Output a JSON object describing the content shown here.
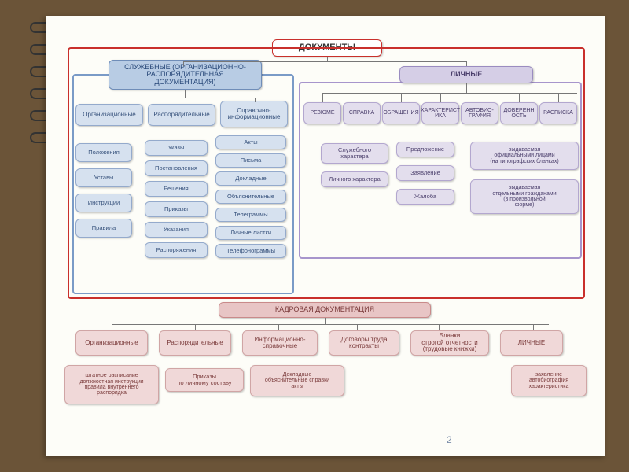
{
  "page_number": "2",
  "colors": {
    "bg_outer": "#6b5438",
    "bg_page": "#fdfdf8",
    "root_fill": "#ffffff",
    "root_border": "#c9302c",
    "blue_header_fill": "#b8cce4",
    "blue_header_border": "#6f8db8",
    "blue_header_text": "#2a4a7a",
    "blue_fill": "#d6e1ef",
    "blue_border": "#94aacc",
    "blue_text": "#38537d",
    "purple_header_fill": "#d5cee6",
    "purple_header_border": "#9a8cc0",
    "purple_fill": "#e3deed",
    "purple_border": "#b3a7cf",
    "purple_text": "#4a3e6b",
    "pink_header_fill": "#e8c5c5",
    "pink_header_border": "#c98a8a",
    "pink_fill": "#f0d8d8",
    "pink_border": "#d0a5a5",
    "pink_text": "#7a3a3a",
    "frame_blue": "#7a9bc7",
    "frame_purple": "#a795cc",
    "frame_red": "#c9302c",
    "connector": "#777777"
  },
  "fontsize": {
    "root": 11,
    "header": 9,
    "cat": 8,
    "item": 7.5,
    "tiny": 7
  },
  "root": {
    "label": "ДОКУМЕНТЫ"
  },
  "blue": {
    "header": "СЛУЖЕБНЫЕ (ОРГАНИЗАЦИОННО-\nРАСПОРЯДИТЕЛЬНАЯ\nДОКУМЕНТАЦИЯ)",
    "cats": [
      "Организационные",
      "Распорядительные",
      "Справочно-\nинформационные"
    ],
    "col1": [
      "Положения",
      "Уставы",
      "Инструкции",
      "Правила"
    ],
    "col2": [
      "Указы",
      "Постановления",
      "Решения",
      "Приказы",
      "Указания",
      "Распоряжения"
    ],
    "col3": [
      "Акты",
      "Письма",
      "Докладные",
      "Объяснительные",
      "Телеграммы",
      "Личные листки",
      "Телефонограммы"
    ]
  },
  "purple": {
    "header": "ЛИЧНЫЕ",
    "cats": [
      "РЕЗЮМЕ",
      "СПРАВКА",
      "ОБРАЩЕНИЯ",
      "ХАРАКТЕРИСТ\nИКА",
      "АВТОБИО-\nГРАФИЯ",
      "ДОВЕРЕНН\nОСТЬ",
      "РАСПИСКА"
    ],
    "spravka": [
      "Служебного\nхарактера",
      "Личного характера"
    ],
    "obr": [
      "Предложение",
      "Заявление",
      "Жалоба"
    ],
    "dov": [
      "выдаваемая\nофициальными лицами\n(на типографских бланках)",
      "выдаваемая\nотдельными гражданами\n(в произвольной\nформе)"
    ]
  },
  "pink": {
    "header": "КАДРОВАЯ ДОКУМЕНТАЦИЯ",
    "cats": [
      "Организационные",
      "Распорядительные",
      "Информационно-\nсправочные",
      "Договоры труда\nконтракты",
      "Бланки\nстрогой отчетности\n(трудовые книжки)",
      "ЛИЧНЫЕ"
    ],
    "sub1": "штатное расписание\nдолжностная инструкция\nправила внутреннего\nраспорядка",
    "sub2": "Приказы\nпо личному составу",
    "sub3": "Докладные\nобъяснительные справки\nакты",
    "sub6": "заявление\nавтобиография\nхарактеристика"
  }
}
